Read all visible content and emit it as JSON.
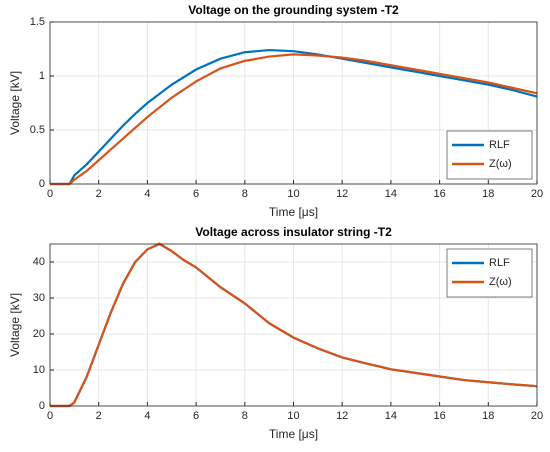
{
  "chart_data": [
    {
      "type": "line",
      "title": "Voltage on the grounding system -T2",
      "xlabel": "Time [μs]",
      "ylabel": "Voltage [kV]",
      "x": [
        0,
        0.5,
        0.8,
        1,
        1.5,
        2,
        2.5,
        3,
        3.5,
        4,
        5,
        6,
        7,
        8,
        9,
        10,
        11,
        12,
        13,
        14,
        15,
        16,
        17,
        18,
        19,
        20
      ],
      "series": [
        {
          "name": "RLF",
          "color": "#0072bd",
          "values": [
            0,
            0,
            0,
            0.08,
            0.18,
            0.3,
            0.42,
            0.54,
            0.65,
            0.75,
            0.92,
            1.06,
            1.16,
            1.22,
            1.24,
            1.23,
            1.2,
            1.16,
            1.12,
            1.08,
            1.04,
            1.0,
            0.96,
            0.92,
            0.87,
            0.81
          ]
        },
        {
          "name": "Z(ω)",
          "color": "#d95319",
          "values": [
            0,
            0,
            0,
            0.04,
            0.12,
            0.22,
            0.32,
            0.42,
            0.52,
            0.62,
            0.8,
            0.95,
            1.07,
            1.14,
            1.18,
            1.2,
            1.19,
            1.17,
            1.14,
            1.1,
            1.06,
            1.02,
            0.98,
            0.94,
            0.89,
            0.84
          ]
        }
      ],
      "xlim": [
        0,
        20
      ],
      "xticks": [
        0,
        2,
        4,
        6,
        8,
        10,
        12,
        14,
        16,
        18,
        20
      ],
      "ylim": [
        0,
        1.5
      ],
      "yticks": [
        0,
        0.5,
        1,
        1.5
      ],
      "grid": true,
      "legend": "southeast"
    },
    {
      "type": "line",
      "title": "Voltage across insulator string -T2",
      "xlabel": "Time [μs]",
      "ylabel": "Voltage [kV]",
      "x": [
        0,
        0.5,
        0.8,
        1,
        1.5,
        2,
        2.5,
        3,
        3.5,
        4,
        4.5,
        5,
        5.5,
        6,
        7,
        8,
        9,
        10,
        11,
        12,
        13,
        14,
        15,
        16,
        17,
        18,
        19,
        20
      ],
      "series": [
        {
          "name": "RLF",
          "color": "#0072bd",
          "values": [
            0,
            0,
            0,
            1,
            8,
            17,
            26,
            34,
            40,
            43.5,
            45,
            43,
            40.5,
            38.5,
            33,
            28.5,
            23,
            19,
            16,
            13.5,
            11.8,
            10.2,
            9.2,
            8.2,
            7.2,
            6.6,
            6,
            5.5
          ]
        },
        {
          "name": "Z(ω)",
          "color": "#d95319",
          "values": [
            0,
            0,
            0,
            1,
            8,
            17,
            26,
            34,
            40,
            43.5,
            45.1,
            43,
            40.5,
            38.5,
            33,
            28.5,
            23,
            19,
            16,
            13.5,
            11.8,
            10.2,
            9.2,
            8.2,
            7.2,
            6.6,
            6,
            5.5
          ]
        }
      ],
      "xlim": [
        0,
        20
      ],
      "xticks": [
        0,
        2,
        4,
        6,
        8,
        10,
        12,
        14,
        16,
        18,
        20
      ],
      "ylim": [
        0,
        45
      ],
      "yticks": [
        0,
        10,
        20,
        30,
        40
      ],
      "grid": true,
      "legend": "northeast"
    }
  ]
}
